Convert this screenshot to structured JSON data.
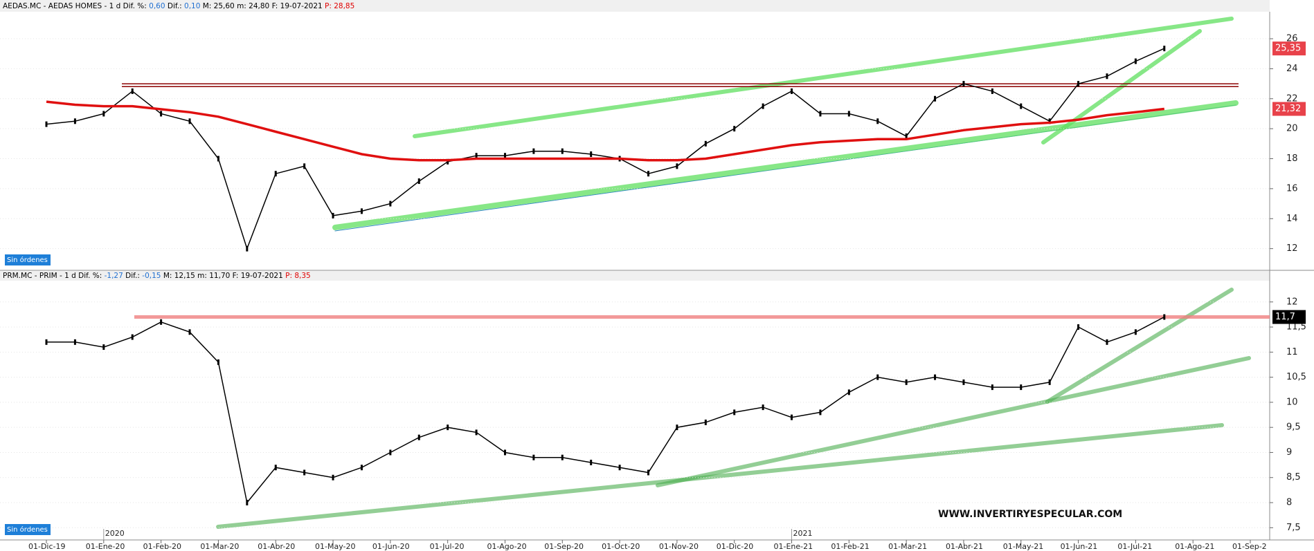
{
  "chart_data": [
    {
      "type": "line",
      "header": [
        "AEDAS.MC - AEDAS HOMES -  1 d  Dif. %:",
        "0,60",
        "Dif.:",
        "0,10",
        "M: 25,60  m: 24,80  F: 19-07-2021",
        "P: 28,85"
      ],
      "badge": "Sin órdenes",
      "ylim": [
        10.6,
        27.8
      ],
      "yticks": [
        12,
        14,
        16,
        18,
        20,
        22,
        24,
        26
      ],
      "grid": true,
      "reference_lines": [
        {
          "value": 22.9,
          "color": "#8b0000"
        }
      ],
      "series": [
        {
          "name": "AEDAS.MC",
          "color": "#000000",
          "tag_color": "#e8424a",
          "values": [
            20.3,
            20.5,
            21,
            22.5,
            21,
            20.5,
            18,
            12,
            17,
            17.5,
            14.2,
            14.5,
            15,
            16.5,
            17.8,
            18.2,
            18.2,
            18.5,
            18.5,
            18.3,
            18,
            17,
            17.5,
            19,
            20,
            21.5,
            22.5,
            21,
            21,
            20.5,
            19.5,
            22,
            23,
            22.5,
            21.5,
            20.5,
            23,
            23.5,
            24.5,
            25.35,
            null,
            null,
            null,
            null
          ],
          "value_labels": [
            null,
            null,
            null,
            null,
            null,
            null,
            null,
            null,
            null,
            null,
            null,
            null,
            null,
            null,
            null,
            null,
            null,
            null,
            null,
            null,
            null,
            null,
            null,
            null,
            null,
            null,
            null,
            null,
            null,
            null,
            null,
            null,
            null,
            null,
            null,
            null,
            null,
            null,
            null,
            "25,35",
            null,
            null,
            null,
            null
          ]
        },
        {
          "name": "MM200",
          "color": "#e01010",
          "tag_color": "#e8424a",
          "values": [
            21.8,
            21.6,
            21.5,
            21.5,
            21.3,
            21.1,
            20.8,
            20.3,
            19.8,
            19.3,
            18.8,
            18.3,
            18.0,
            17.9,
            17.9,
            18.0,
            18.0,
            18.0,
            18.0,
            18.0,
            18.0,
            17.9,
            17.9,
            18.0,
            18.3,
            18.6,
            18.9,
            19.1,
            19.2,
            19.3,
            19.3,
            19.6,
            19.9,
            20.1,
            20.3,
            20.4,
            20.6,
            20.9,
            21.1,
            21.32,
            null,
            null,
            null,
            null
          ],
          "value_labels": [
            null,
            null,
            null,
            null,
            null,
            null,
            null,
            null,
            null,
            null,
            null,
            null,
            null,
            null,
            null,
            null,
            null,
            null,
            null,
            null,
            null,
            null,
            null,
            null,
            null,
            null,
            null,
            null,
            null,
            null,
            null,
            null,
            null,
            null,
            null,
            null,
            null,
            null,
            null,
            "21,32",
            null,
            null,
            null,
            null
          ]
        }
      ]
    },
    {
      "type": "line",
      "header": [
        "PRM.MC - PRIM -  1 d  Dif. %:",
        "-1,27",
        "Dif.:",
        "-0,15",
        "M: 12,15  m: 11,70  F: 19-07-2021",
        "P: 8,35"
      ],
      "badge": "Sin órdenes",
      "watermark": "WWW.INVERTIRYESPECULAR.COM",
      "year_labels": [
        "2020",
        "2021"
      ],
      "categories": [
        "01-Dic-19",
        null,
        "01-Ene-20",
        null,
        "01-Feb-20",
        null,
        "01-Mar-20",
        null,
        "01-Abr-20",
        null,
        "01-May-20",
        null,
        "01-Jun-20",
        null,
        "01-Jul-20",
        null,
        "01-Ago-20",
        null,
        "01-Sep-20",
        null,
        "01-Oct-20",
        null,
        "01-Nov-20",
        null,
        "01-Dic-20",
        null,
        "01-Ene-21",
        null,
        "01-Feb-21",
        null,
        "01-Mar-21",
        null,
        "01-Abr-21",
        null,
        "01-May-21",
        null,
        "01-Jun-21",
        null,
        "01-Jul-21",
        null,
        "01-Ago-21",
        null,
        "01-Sep-2",
        null
      ],
      "ylim": [
        7.27,
        12.41
      ],
      "yticks": [
        {
          "value": 7.5,
          "label": "7,5"
        },
        8,
        {
          "value": 8.5,
          "label": "8,5"
        },
        9,
        {
          "value": 9.5,
          "label": "9,5"
        },
        10,
        {
          "value": 10.5,
          "label": "10,5"
        },
        11,
        {
          "value": 11.5,
          "label": "11,5"
        },
        12
      ],
      "grid": true,
      "reference_lines": [
        {
          "value": 11.7,
          "color": "#f08080"
        }
      ],
      "series": [
        {
          "name": "PRM.MC",
          "color": "#000000",
          "tag_color": "#000000",
          "values": [
            11.2,
            11.2,
            11.1,
            11.3,
            11.6,
            11.4,
            10.8,
            8.0,
            8.7,
            8.6,
            8.5,
            8.7,
            9.0,
            9.3,
            9.5,
            9.4,
            9.0,
            8.9,
            8.9,
            8.8,
            8.7,
            8.6,
            9.5,
            9.6,
            9.8,
            9.9,
            9.7,
            9.8,
            10.2,
            10.5,
            10.4,
            10.5,
            10.4,
            10.3,
            10.3,
            10.4,
            11.5,
            11.2,
            11.4,
            11.7,
            null,
            null,
            null,
            null
          ],
          "value_labels": [
            null,
            null,
            null,
            null,
            null,
            null,
            null,
            null,
            null,
            null,
            null,
            null,
            null,
            null,
            null,
            null,
            null,
            null,
            null,
            null,
            null,
            null,
            null,
            null,
            null,
            null,
            null,
            null,
            null,
            null,
            null,
            null,
            null,
            null,
            null,
            null,
            null,
            null,
            null,
            "11,7",
            null,
            null,
            null,
            null
          ]
        }
      ]
    }
  ]
}
